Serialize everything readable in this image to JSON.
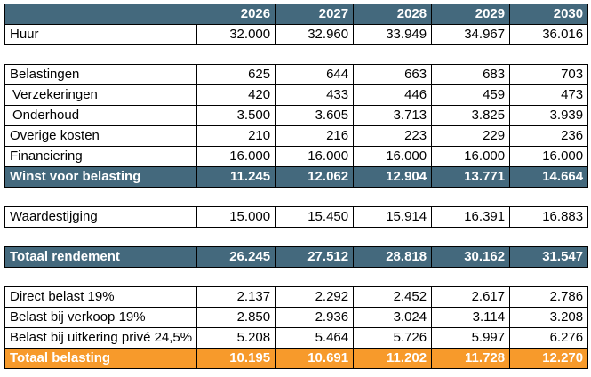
{
  "years": [
    "2026",
    "2027",
    "2028",
    "2029",
    "2030"
  ],
  "rows": [
    {
      "type": "data",
      "label": "Huur",
      "indent": false,
      "values": [
        "32.000",
        "32.960",
        "33.949",
        "34.967",
        "36.016"
      ]
    },
    {
      "type": "gap"
    },
    {
      "type": "data",
      "label": "Belastingen",
      "indent": false,
      "values": [
        "625",
        "644",
        "663",
        "683",
        "703"
      ]
    },
    {
      "type": "data",
      "label": "Verzekeringen",
      "indent": true,
      "values": [
        "420",
        "433",
        "446",
        "459",
        "473"
      ]
    },
    {
      "type": "data",
      "label": "Onderhoud",
      "indent": true,
      "values": [
        "3.500",
        "3.605",
        "3.713",
        "3.825",
        "3.939"
      ]
    },
    {
      "type": "data",
      "label": "Overige kosten",
      "indent": false,
      "values": [
        "210",
        "216",
        "223",
        "229",
        "236"
      ]
    },
    {
      "type": "data",
      "label": "Financiering",
      "indent": false,
      "values": [
        "16.000",
        "16.000",
        "16.000",
        "16.000",
        "16.000"
      ]
    },
    {
      "type": "blue",
      "label": "Winst voor belasting",
      "indent": false,
      "values": [
        "11.245",
        "12.062",
        "12.904",
        "13.771",
        "14.664"
      ]
    },
    {
      "type": "gap"
    },
    {
      "type": "data",
      "label": "Waardestijging",
      "indent": false,
      "values": [
        "15.000",
        "15.450",
        "15.914",
        "16.391",
        "16.883"
      ]
    },
    {
      "type": "gap"
    },
    {
      "type": "blue",
      "label": "Totaal rendement",
      "indent": false,
      "values": [
        "26.245",
        "27.512",
        "28.818",
        "30.162",
        "31.547"
      ]
    },
    {
      "type": "gap"
    },
    {
      "type": "data",
      "label": "Direct belast 19%",
      "indent": false,
      "values": [
        "2.137",
        "2.292",
        "2.452",
        "2.617",
        "2.786"
      ]
    },
    {
      "type": "data",
      "label": "Belast bij verkoop 19%",
      "indent": false,
      "values": [
        "2.850",
        "2.936",
        "3.024",
        "3.114",
        "3.208"
      ]
    },
    {
      "type": "data",
      "label": "Belast bij uitkering privé 24,5%",
      "indent": false,
      "values": [
        "5.208",
        "5.464",
        "5.726",
        "5.997",
        "6.276"
      ]
    },
    {
      "type": "orange",
      "label": "Totaal belasting",
      "indent": false,
      "values": [
        "10.195",
        "10.691",
        "11.202",
        "11.728",
        "12.270"
      ]
    }
  ],
  "colors": {
    "header_blue": "#44697d",
    "total_orange": "#f79a2b"
  }
}
